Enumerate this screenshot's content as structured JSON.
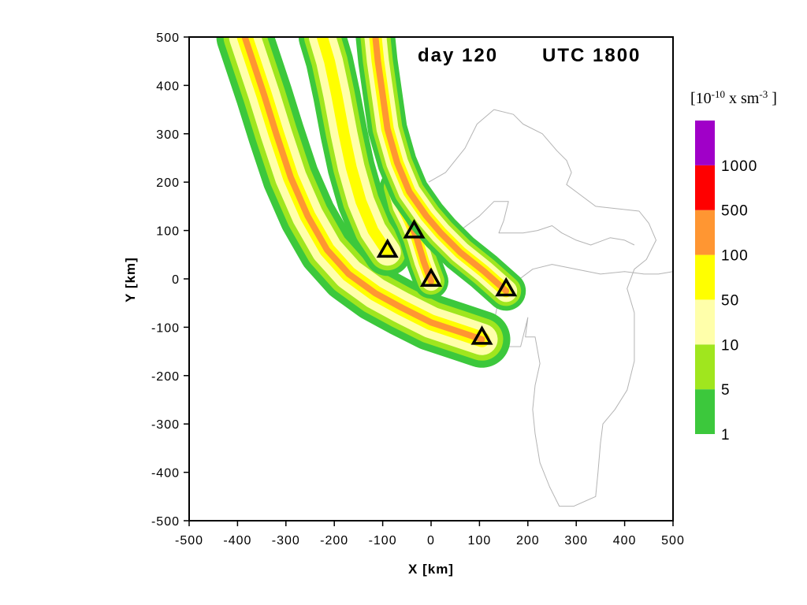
{
  "chart_data": {
    "type": "contour",
    "title": "",
    "annotation_day": "day 120",
    "annotation_time": "UTC 1800",
    "xlabel": "X [km]",
    "ylabel": "Y [km]",
    "xlim": [
      -500,
      500
    ],
    "ylim": [
      -500,
      500
    ],
    "xticks": [
      -500,
      -400,
      -300,
      -200,
      -100,
      0,
      100,
      200,
      300,
      400,
      500
    ],
    "yticks": [
      -500,
      -400,
      -300,
      -200,
      -100,
      0,
      100,
      200,
      300,
      400,
      500
    ],
    "grid": false,
    "colorbar": {
      "units_base": "[10",
      "units_exp1": "-10",
      "units_mid": " x sm",
      "units_exp2": "-3",
      "units_end": " ]",
      "levels": [
        "1",
        "5",
        "10",
        "50",
        "100",
        "500",
        "1000"
      ],
      "colors": [
        "#3cc83c",
        "#a0e61e",
        "#ffffaa",
        "#ffff00",
        "#ff9632",
        "#ff0000",
        "#a000c8"
      ]
    },
    "sources": [
      {
        "x": -90,
        "y": 60
      },
      {
        "x": -35,
        "y": 100
      },
      {
        "x": 0,
        "y": 0
      },
      {
        "x": 155,
        "y": -20
      },
      {
        "x": 105,
        "y": -120
      }
    ],
    "plumes": [
      {
        "fills": [
          "#3cc83c",
          "#a0e61e",
          "#ffffaa",
          "#ffff00",
          "#ff9632"
        ],
        "widths": [
          72,
          54,
          40,
          20,
          8
        ],
        "red_start": 0.05,
        "path": [
          [
            105,
            -125
          ],
          [
            60,
            -110
          ],
          [
            0,
            -90
          ],
          [
            -60,
            -60
          ],
          [
            -115,
            -30
          ],
          [
            -170,
            10
          ],
          [
            -215,
            60
          ],
          [
            -255,
            130
          ],
          [
            -290,
            210
          ],
          [
            -320,
            300
          ],
          [
            -345,
            380
          ],
          [
            -365,
            440
          ],
          [
            -385,
            500
          ]
        ]
      },
      {
        "fills": [
          "#3cc83c",
          "#a0e61e",
          "#ffffaa",
          "#ffff00"
        ],
        "widths": [
          60,
          46,
          34,
          14
        ],
        "red_start": 0,
        "path": [
          [
            -90,
            55
          ],
          [
            -120,
            100
          ],
          [
            -145,
            160
          ],
          [
            -165,
            230
          ],
          [
            -180,
            300
          ],
          [
            -195,
            380
          ],
          [
            -210,
            450
          ],
          [
            -225,
            500
          ]
        ]
      },
      {
        "fills": [
          "#3cc83c",
          "#a0e61e",
          "#ffffaa",
          "#ffff00",
          "#ff9632"
        ],
        "widths": [
          44,
          34,
          24,
          14,
          8
        ],
        "red_start": 0,
        "path": [
          [
            0,
            -5
          ],
          [
            -15,
            35
          ],
          [
            -30,
            85
          ],
          [
            -45,
            120
          ],
          [
            -60,
            150
          ],
          [
            -70,
            190
          ]
        ]
      },
      {
        "fills": [
          "#3cc83c",
          "#a0e61e",
          "#ffffaa",
          "#ffff00",
          "#ff9632"
        ],
        "widths": [
          50,
          38,
          28,
          16,
          8
        ],
        "red_start": 0,
        "path": [
          [
            155,
            -25
          ],
          [
            110,
            15
          ],
          [
            60,
            55
          ],
          [
            20,
            95
          ],
          [
            -10,
            130
          ],
          [
            -45,
            180
          ],
          [
            -70,
            240
          ],
          [
            -90,
            310
          ],
          [
            -100,
            380
          ],
          [
            -110,
            450
          ],
          [
            -115,
            500
          ]
        ]
      }
    ],
    "coastline": [
      [
        [
          -5,
          200
        ],
        [
          30,
          220
        ],
        [
          70,
          270
        ],
        [
          95,
          320
        ],
        [
          130,
          350
        ],
        [
          170,
          340
        ],
        [
          190,
          320
        ],
        [
          230,
          300
        ],
        [
          260,
          265
        ],
        [
          280,
          245
        ],
        [
          290,
          220
        ],
        [
          280,
          195
        ],
        [
          300,
          180
        ],
        [
          340,
          150
        ],
        [
          430,
          140
        ],
        [
          450,
          115
        ],
        [
          465,
          80
        ],
        [
          445,
          40
        ],
        [
          420,
          20
        ],
        [
          405,
          -20
        ],
        [
          420,
          -70
        ],
        [
          420,
          -170
        ],
        [
          405,
          -230
        ],
        [
          380,
          -270
        ],
        [
          355,
          -300
        ],
        [
          350,
          -340
        ],
        [
          345,
          -400
        ],
        [
          340,
          -450
        ],
        [
          295,
          -470
        ],
        [
          265,
          -470
        ],
        [
          245,
          -430
        ],
        [
          225,
          -380
        ],
        [
          215,
          -320
        ],
        [
          210,
          -270
        ],
        [
          215,
          -220
        ],
        [
          225,
          -175
        ],
        [
          215,
          -120
        ],
        [
          195,
          -120
        ],
        [
          200,
          -80
        ],
        [
          185,
          -140
        ],
        [
          150,
          -140
        ],
        [
          130,
          -90
        ],
        [
          140,
          -40
        ],
        [
          170,
          -10
        ],
        [
          210,
          20
        ],
        [
          250,
          30
        ],
        [
          300,
          20
        ],
        [
          350,
          10
        ],
        [
          400,
          15
        ],
        [
          440,
          10
        ],
        [
          470,
          10
        ],
        [
          500,
          15
        ]
      ],
      [
        [
          -130,
          80
        ],
        [
          -70,
          160
        ],
        [
          -50,
          170
        ],
        [
          -10,
          140
        ],
        [
          20,
          110
        ],
        [
          60,
          100
        ],
        [
          100,
          130
        ],
        [
          130,
          160
        ],
        [
          160,
          160
        ],
        [
          150,
          120
        ],
        [
          140,
          95
        ],
        [
          190,
          95
        ],
        [
          220,
          100
        ],
        [
          250,
          110
        ],
        [
          270,
          95
        ],
        [
          300,
          80
        ],
        [
          330,
          70
        ],
        [
          370,
          85
        ],
        [
          400,
          80
        ],
        [
          420,
          70
        ]
      ],
      [
        [
          0,
          130
        ],
        [
          -20,
          90
        ],
        [
          -60,
          60
        ],
        [
          -100,
          60
        ]
      ]
    ]
  }
}
